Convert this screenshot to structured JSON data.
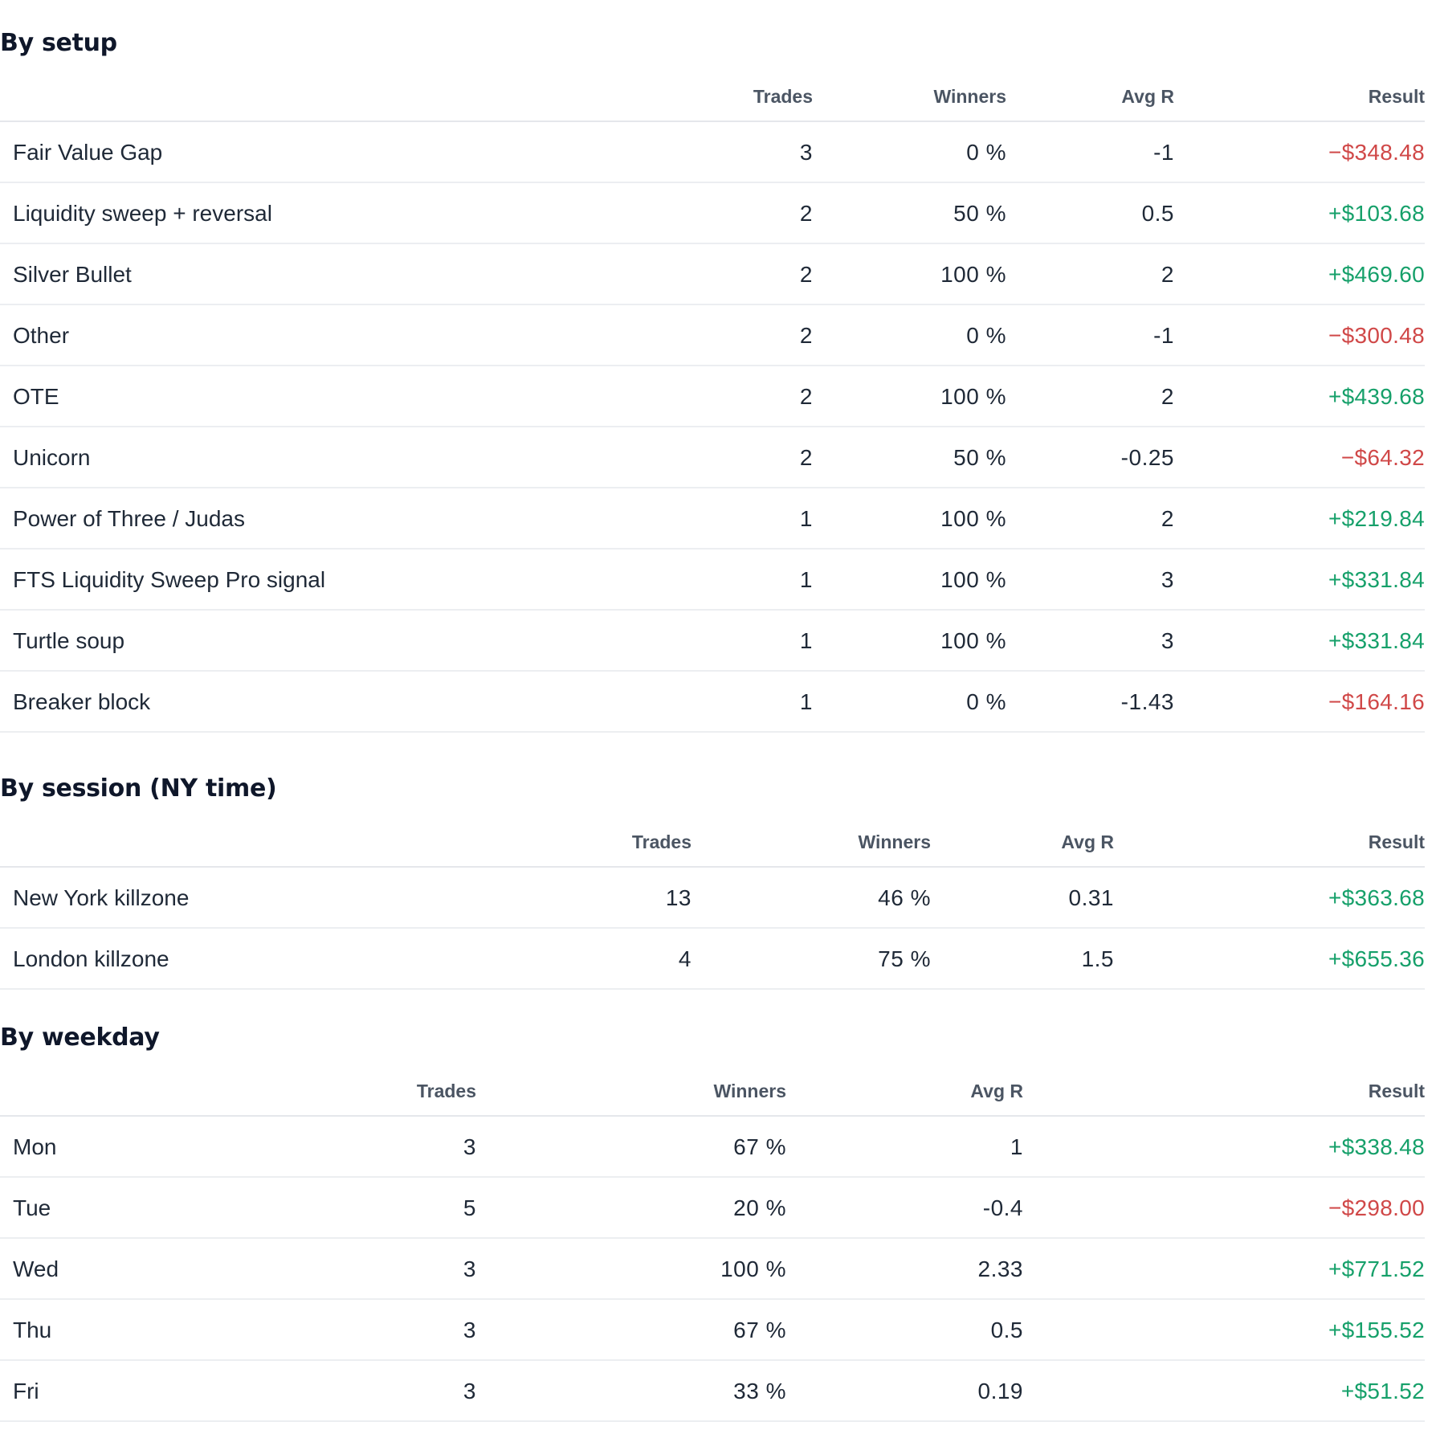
{
  "columns": {
    "trades": "Trades",
    "winners": "Winners",
    "avg_r": "Avg R",
    "result": "Result"
  },
  "sections": [
    {
      "title": "By setup",
      "rows": [
        {
          "name": "Fair Value Gap",
          "trades": "3",
          "winners": "0 %",
          "avg_r": "-1",
          "result": "−$348.48",
          "sign": "neg"
        },
        {
          "name": "Liquidity sweep + reversal",
          "trades": "2",
          "winners": "50 %",
          "avg_r": "0.5",
          "result": "+$103.68",
          "sign": "pos"
        },
        {
          "name": "Silver Bullet",
          "trades": "2",
          "winners": "100 %",
          "avg_r": "2",
          "result": "+$469.60",
          "sign": "pos"
        },
        {
          "name": "Other",
          "trades": "2",
          "winners": "0 %",
          "avg_r": "-1",
          "result": "−$300.48",
          "sign": "neg"
        },
        {
          "name": "OTE",
          "trades": "2",
          "winners": "100 %",
          "avg_r": "2",
          "result": "+$439.68",
          "sign": "pos"
        },
        {
          "name": "Unicorn",
          "trades": "2",
          "winners": "50 %",
          "avg_r": "-0.25",
          "result": "−$64.32",
          "sign": "neg"
        },
        {
          "name": "Power of Three / Judas",
          "trades": "1",
          "winners": "100 %",
          "avg_r": "2",
          "result": "+$219.84",
          "sign": "pos"
        },
        {
          "name": "FTS Liquidity Sweep Pro signal",
          "trades": "1",
          "winners": "100 %",
          "avg_r": "3",
          "result": "+$331.84",
          "sign": "pos"
        },
        {
          "name": "Turtle soup",
          "trades": "1",
          "winners": "100 %",
          "avg_r": "3",
          "result": "+$331.84",
          "sign": "pos"
        },
        {
          "name": "Breaker block",
          "trades": "1",
          "winners": "0 %",
          "avg_r": "-1.43",
          "result": "−$164.16",
          "sign": "neg"
        }
      ]
    },
    {
      "title": "By session (NY time)",
      "rows": [
        {
          "name": "New York killzone",
          "trades": "13",
          "winners": "46 %",
          "avg_r": "0.31",
          "result": "+$363.68",
          "sign": "pos"
        },
        {
          "name": "London killzone",
          "trades": "4",
          "winners": "75 %",
          "avg_r": "1.5",
          "result": "+$655.36",
          "sign": "pos"
        }
      ]
    },
    {
      "title": "By weekday",
      "rows": [
        {
          "name": "Mon",
          "trades": "3",
          "winners": "67 %",
          "avg_r": "1",
          "result": "+$338.48",
          "sign": "pos"
        },
        {
          "name": "Tue",
          "trades": "5",
          "winners": "20 %",
          "avg_r": "-0.4",
          "result": "−$298.00",
          "sign": "neg"
        },
        {
          "name": "Wed",
          "trades": "3",
          "winners": "100 %",
          "avg_r": "2.33",
          "result": "+$771.52",
          "sign": "pos"
        },
        {
          "name": "Thu",
          "trades": "3",
          "winners": "67 %",
          "avg_r": "0.5",
          "result": "+$155.52",
          "sign": "pos"
        },
        {
          "name": "Fri",
          "trades": "3",
          "winners": "33 %",
          "avg_r": "0.19",
          "result": "+$51.52",
          "sign": "pos"
        }
      ]
    }
  ],
  "colors": {
    "positive": "#16a06a",
    "negative": "#d04848"
  }
}
